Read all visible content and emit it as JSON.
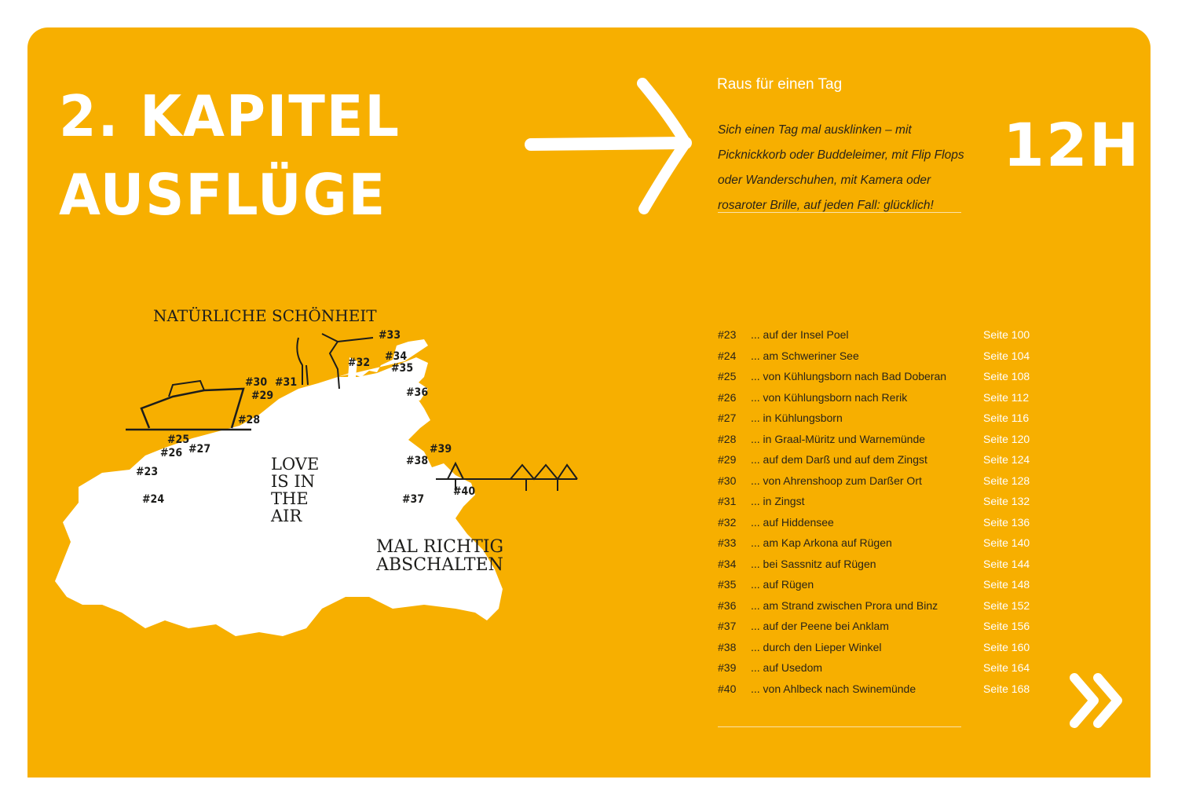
{
  "chapter": {
    "line1": "2. KAPITEL",
    "line2": "AUSFLÜGE"
  },
  "subtitle": "Raus für einen Tag",
  "intro": "Sich einen Tag mal ausklinken – mit Picknickkorb oder Buddeleimer, mit Flip Flops oder Wanderschuhen, mit Kamera oder rosaroter Brille, auf jeden Fall: glücklich!",
  "duration": "12H",
  "colors": {
    "background": "#F7AF00",
    "accent": "#FFFFFF",
    "text": "#2A2418"
  },
  "map": {
    "annotations": {
      "nature": "Natürliche Schönheit",
      "love": "Love is in the air",
      "relax": "Mal richtig abschalten"
    },
    "markers": [
      "#23",
      "#24",
      "#25",
      "#26",
      "#27",
      "#28",
      "#29",
      "#30",
      "#31",
      "#32",
      "#33",
      "#34",
      "#35",
      "#36",
      "#37",
      "#38",
      "#39",
      "#40"
    ]
  },
  "entries": [
    {
      "num": "#23",
      "name": "... auf der Insel Poel",
      "page": "Seite 100"
    },
    {
      "num": "#24",
      "name": "... am Schweriner See",
      "page": "Seite 104"
    },
    {
      "num": "#25",
      "name": "... von Kühlungsborn nach Bad Doberan",
      "page": "Seite 108"
    },
    {
      "num": "#26",
      "name": "... von Kühlungsborn nach Rerik",
      "page": "Seite 112"
    },
    {
      "num": "#27",
      "name": "... in Kühlungsborn",
      "page": "Seite 116"
    },
    {
      "num": "#28",
      "name": "... in Graal-Müritz und Warnemünde",
      "page": "Seite 120"
    },
    {
      "num": "#29",
      "name": "... auf dem Darß und auf dem Zingst",
      "page": "Seite 124"
    },
    {
      "num": "#30",
      "name": "... von Ahrenshoop zum Darßer Ort",
      "page": "Seite 128"
    },
    {
      "num": "#31",
      "name": "... in Zingst",
      "page": "Seite 132"
    },
    {
      "num": "#32",
      "name": "... auf Hiddensee",
      "page": "Seite 136"
    },
    {
      "num": "#33",
      "name": "... am Kap Arkona auf Rügen",
      "page": "Seite 140"
    },
    {
      "num": "#34",
      "name": "... bei Sassnitz auf Rügen",
      "page": "Seite 144"
    },
    {
      "num": "#35",
      "name": "... auf Rügen",
      "page": "Seite 148"
    },
    {
      "num": "#36",
      "name": "... am Strand zwischen Prora und Binz",
      "page": "Seite 152"
    },
    {
      "num": "#37",
      "name": "... auf der Peene bei Anklam",
      "page": "Seite 156"
    },
    {
      "num": "#38",
      "name": "... durch den Lieper Winkel",
      "page": "Seite 160"
    },
    {
      "num": "#39",
      "name": "... auf Usedom",
      "page": "Seite 164"
    },
    {
      "num": "#40",
      "name": "... von Ahlbeck nach Swinemünde",
      "page": "Seite 168"
    }
  ]
}
